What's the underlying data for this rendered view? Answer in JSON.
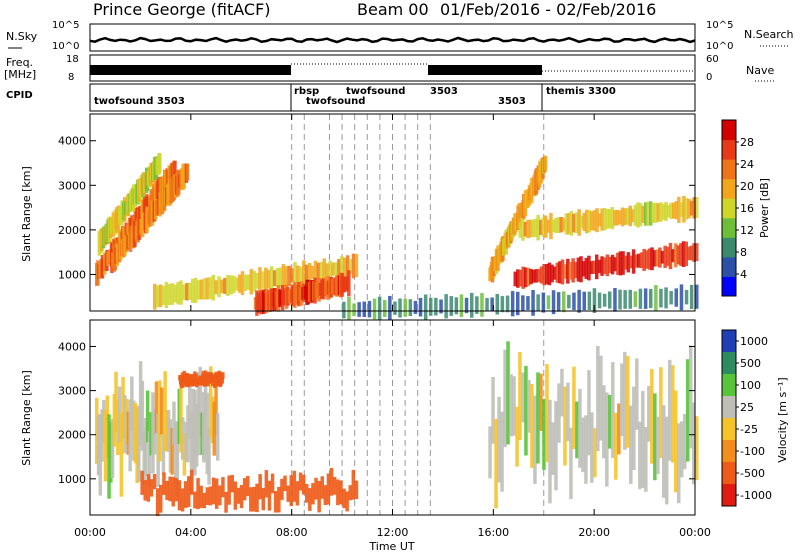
{
  "header": {
    "station": "Prince George (fitACF)",
    "beam": "Beam 00",
    "date_range": "01/Feb/2016 - 02/Feb/2016"
  },
  "noise_panel": {
    "left_label": "N.Sky",
    "right_label": "N.Search",
    "left_ticks": [
      "10^5",
      "10^0"
    ],
    "right_ticks": [
      "10^5",
      "10^0"
    ]
  },
  "freq_panel": {
    "left_label_1": "Freq.",
    "left_label_2": "[MHz]",
    "left_ticks": [
      "18",
      "8"
    ],
    "right_label": "Nave",
    "right_ticks": [
      "60",
      "0"
    ]
  },
  "cpid_panel": {
    "label": "CPID",
    "segments": [
      {
        "name": "twofsound 3503",
        "start_h": 0,
        "end_h": 8.0
      },
      {
        "name": "rbsp",
        "start_h": 8.0,
        "end_h": 8.5
      },
      {
        "name": "twofsound",
        "start_h": 8.5,
        "end_h": 13.5
      },
      {
        "name": "3503",
        "start_h": 13.5,
        "end_h": 18.0
      },
      {
        "name": "themis 3300",
        "start_h": 18.0,
        "end_h": 24.0
      }
    ],
    "overlap_labels": [
      "twofsound",
      "3503"
    ]
  },
  "x_axis": {
    "label": "Time UT",
    "ticks": [
      "00:00",
      "04:00",
      "08:00",
      "12:00",
      "16:00",
      "20:00",
      "00:00"
    ]
  },
  "power_panel": {
    "ylabel": "Slant Range [km]",
    "yticks": [
      "1000",
      "2000",
      "3000",
      "4000"
    ],
    "colorbar_label": "Power [dB]",
    "colorbar_ticks": [
      "4",
      "8",
      "12",
      "16",
      "20",
      "24",
      "28"
    ],
    "colors": [
      "#0000ff",
      "#2a50a8",
      "#3b8a6e",
      "#6dbf3a",
      "#cfd62a",
      "#f2a61a",
      "#f07319",
      "#e83a16",
      "#d40000"
    ]
  },
  "velocity_panel": {
    "ylabel": "Slant Range [km]",
    "yticks": [
      "1000",
      "2000",
      "3000",
      "4000"
    ],
    "colorbar_label": "Velocity [m s⁻¹]",
    "colorbar_ticks": [
      "1000",
      "500",
      "100",
      "25",
      "-25",
      "-100",
      "-500",
      "-1000"
    ],
    "colors": [
      "#1f3fb5",
      "#2e8a5f",
      "#58c43a",
      "#bfbfb8",
      "#f5c32a",
      "#f28d1c",
      "#ee5a17",
      "#e01b10"
    ]
  },
  "chart_data": {
    "type": "heatmap",
    "title": "Prince George (fitACF) Beam 00 01/Feb/2016 - 02/Feb/2016",
    "xlabel": "Time UT",
    "ylabel": "Slant Range [km]",
    "xlim_hours": [
      0,
      24
    ],
    "ylim_km": [
      180,
      4600
    ],
    "grid": false,
    "mode_change_times_h": [
      8.0,
      8.5,
      9.5,
      10.0,
      10.5,
      11.0,
      11.5,
      12.0,
      12.5,
      13.0,
      13.5,
      18.0
    ],
    "power_features": [
      {
        "desc": "slanted echo band",
        "t0": 0.2,
        "t1": 3.3,
        "r0": 1000,
        "r1": 3400,
        "power_db": 24
      },
      {
        "desc": "slanted echo band",
        "t0": 0.8,
        "t1": 3.8,
        "r0": 1300,
        "r1": 3300,
        "power_db": 22
      },
      {
        "desc": "slanted echo band",
        "t0": 0.3,
        "t1": 2.7,
        "r0": 1700,
        "r1": 3500,
        "power_db": 16
      },
      {
        "desc": "near range band",
        "t0": 2.5,
        "t1": 10.5,
        "r0": 500,
        "r1": 1200,
        "power_db": 18
      },
      {
        "desc": "near range strong echoes",
        "t0": 6.5,
        "t1": 10.2,
        "r0": 350,
        "r1": 800,
        "power_db": 26
      },
      {
        "desc": "ground scatter onset",
        "t0": 15.8,
        "t1": 18.0,
        "r0": 1000,
        "r1": 3500,
        "power_db": 20
      },
      {
        "desc": "strong band",
        "t0": 16.8,
        "t1": 24.0,
        "r0": 900,
        "r1": 1500,
        "power_db": 28
      },
      {
        "desc": "upper band",
        "t0": 17.0,
        "t1": 24.0,
        "r0": 2000,
        "r1": 2500,
        "power_db": 18
      },
      {
        "desc": "scattered low echoes",
        "t0": 10.0,
        "t1": 24.0,
        "r0": 200,
        "r1": 500,
        "power_db": 8
      }
    ],
    "velocity_features": [
      {
        "desc": "ground scatter",
        "t0": 0.2,
        "t1": 5.0,
        "r0": 1000,
        "r1": 3200,
        "velocity_ms": 0
      },
      {
        "desc": "westward flow",
        "t0": 3.5,
        "t1": 5.2,
        "r0": 3100,
        "r1": 3400,
        "velocity_ms": -400
      },
      {
        "desc": "westward flow",
        "t0": 2.0,
        "t1": 10.5,
        "r0": 300,
        "r1": 1100,
        "velocity_ms": -500
      },
      {
        "desc": "ground scatter",
        "t0": 15.8,
        "t1": 24.0,
        "r0": 800,
        "r1": 3500,
        "velocity_ms": 0
      }
    ]
  }
}
